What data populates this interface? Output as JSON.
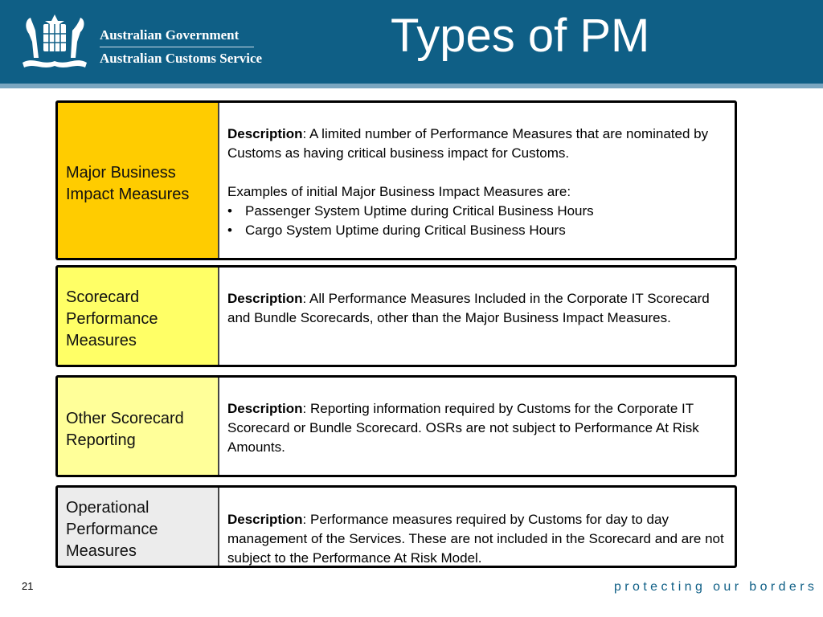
{
  "header": {
    "org_line1": "Australian Government",
    "org_line2": "Australian Customs Service",
    "title": "Types of PM"
  },
  "colors": {
    "header_bg": "#0f5f86",
    "row1": "#ffcc00",
    "row2": "#ffff66",
    "row3": "#ffff99",
    "row4": "#ececec"
  },
  "rows": [
    {
      "label": "Major Business Impact Measures",
      "desc_bold": "Description",
      "desc_text": ":  A limited number of Performance Measures that are nominated by Customs as having critical business impact for Customs.",
      "examples_intro": "Examples of initial Major Business Impact Measures are:",
      "bullets": [
        "Passenger System Uptime during Critical Business Hours",
        "Cargo System Uptime during Critical Business Hours"
      ]
    },
    {
      "label": "Scorecard Performance Measures",
      "desc_bold": "Description",
      "desc_text": ":  All Performance Measures Included in the Corporate IT Scorecard and Bundle Scorecards, other than the Major Business Impact Measures."
    },
    {
      "label": "Other Scorecard Reporting",
      "desc_bold": "Description",
      "desc_text": ":  Reporting information required by Customs for the Corporate IT Scorecard or Bundle Scorecard.  OSRs are not subject to Performance At Risk Amounts."
    },
    {
      "label": "Operational Performance Measures",
      "desc_bold": "Description",
      "desc_text": ":  Performance measures required by Customs for day to day management of the Services.  These are not included in the Scorecard and are not subject to the Performance At Risk Model."
    }
  ],
  "footer": {
    "page_number": "21",
    "tagline": "protecting our borders"
  }
}
